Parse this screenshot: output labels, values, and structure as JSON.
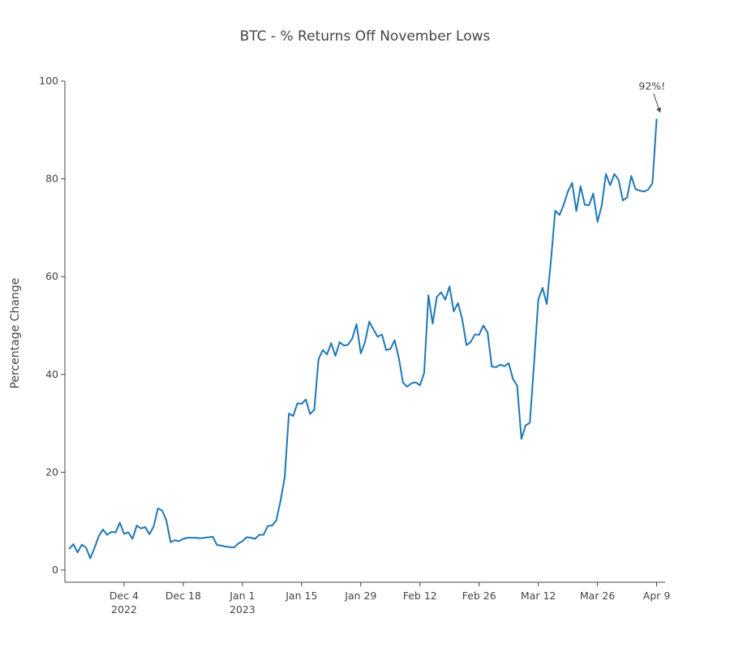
{
  "chart_data": {
    "type": "line",
    "title": "BTC - % Returns Off November Lows",
    "xlabel": "",
    "ylabel": "Percentage Change",
    "x_start": "2022-11-21",
    "x_end": "2023-04-10",
    "xlim": [
      "2022-11-20",
      "2023-04-11"
    ],
    "ylim": [
      -2.5,
      100
    ],
    "y_ticks": [
      0,
      20,
      40,
      60,
      80,
      100
    ],
    "x_ticks": [
      {
        "date": "2022-12-04",
        "label": "Dec 4",
        "sublabel": "2022"
      },
      {
        "date": "2022-12-18",
        "label": "Dec 18",
        "sublabel": ""
      },
      {
        "date": "2023-01-01",
        "label": "Jan 1",
        "sublabel": "2023"
      },
      {
        "date": "2023-01-15",
        "label": "Jan 15",
        "sublabel": ""
      },
      {
        "date": "2023-01-29",
        "label": "Jan 29",
        "sublabel": ""
      },
      {
        "date": "2023-02-12",
        "label": "Feb 12",
        "sublabel": ""
      },
      {
        "date": "2023-02-26",
        "label": "Feb 26",
        "sublabel": ""
      },
      {
        "date": "2023-03-12",
        "label": "Mar 12",
        "sublabel": ""
      },
      {
        "date": "2023-03-26",
        "label": "Mar 26",
        "sublabel": ""
      },
      {
        "date": "2023-04-09",
        "label": "Apr 9",
        "sublabel": ""
      }
    ],
    "grid": false,
    "line_color": "#1f77b4",
    "series": [
      {
        "values": [
          4.3,
          5.3,
          3.6,
          5.2,
          4.6,
          2.4,
          4.5,
          6.9,
          8.3,
          7.2,
          7.8,
          7.7,
          9.7,
          7.4,
          7.7,
          6.4,
          9.1,
          8.5,
          8.8,
          7.3,
          8.9,
          12.6,
          12.2,
          10.2,
          5.7,
          6.1,
          5.9,
          6.4,
          6.6,
          6.6,
          6.6,
          6.5,
          6.6,
          6.7,
          6.8,
          5.1,
          5.0,
          4.8,
          4.7,
          4.6,
          5.4,
          5.9,
          6.7,
          6.6,
          6.4,
          7.2,
          7.2,
          9.0,
          9.1,
          10.1,
          14.1,
          18.9,
          32.0,
          31.5,
          34.1,
          34.0,
          34.9,
          31.9,
          32.8,
          43.1,
          45.0,
          44.1,
          46.4,
          43.8,
          46.6,
          45.9,
          46.1,
          47.4,
          50.3,
          44.3,
          46.6,
          50.8,
          49.2,
          47.7,
          48.2,
          45.0,
          45.2,
          47.0,
          43.4,
          38.3,
          37.5,
          38.2,
          38.4,
          37.8,
          40.3,
          56.2,
          50.4,
          55.9,
          56.8,
          55.3,
          58.0,
          52.9,
          54.6,
          51.3,
          46.0,
          46.6,
          48.2,
          48.1,
          50.0,
          48.6,
          41.6,
          41.5,
          42.0,
          41.7,
          42.3,
          39.1,
          37.7,
          26.8,
          29.6,
          30.1,
          42.3,
          55.3,
          57.7,
          54.4,
          63.4,
          73.5,
          72.6,
          74.7,
          77.4,
          79.2,
          73.4,
          78.5,
          74.7,
          74.6,
          77.0,
          71.2,
          74.5,
          81.0,
          78.7,
          81.0,
          79.8,
          75.6,
          76.2,
          80.6,
          77.9,
          77.6,
          77.4,
          77.8,
          79.1,
          92.3
        ]
      }
    ],
    "annotations": [
      {
        "text": "92%!",
        "date": "2023-04-10",
        "value": 92.3
      }
    ]
  }
}
